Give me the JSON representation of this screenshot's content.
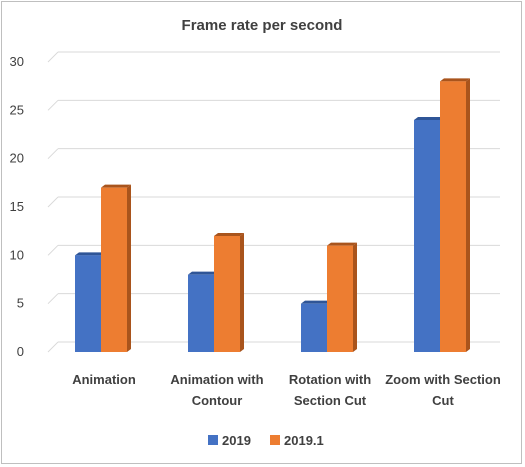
{
  "chart_data": {
    "type": "bar",
    "title": "Frame rate per second",
    "categories": [
      [
        "Animation"
      ],
      [
        "Animation with",
        "Contour"
      ],
      [
        "Rotation with",
        "Section Cut"
      ],
      [
        "Zoom with Section",
        "Cut"
      ]
    ],
    "series": [
      {
        "name": "2019",
        "values": [
          10,
          8,
          5,
          24
        ],
        "color": "#4472c4",
        "shade": "#2f5597"
      },
      {
        "name": "2019.1",
        "values": [
          17,
          12,
          11,
          28
        ],
        "color": "#ed7d31",
        "shade": "#a9541c"
      }
    ],
    "ylim": [
      0,
      30
    ],
    "yticks": [
      0,
      5,
      10,
      15,
      20,
      25,
      30
    ],
    "grid": true,
    "legend": "bottom",
    "xlabel": "",
    "ylabel": ""
  }
}
